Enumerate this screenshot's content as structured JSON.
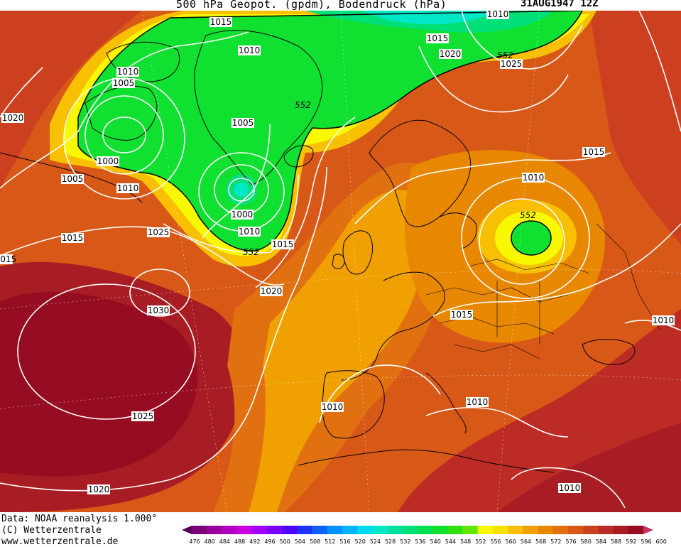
{
  "header": {
    "title": "500 hPa Geopot. (gpdm), Bodendruck (hPa)",
    "date": "31AUG1947 12Z"
  },
  "footer": {
    "source": "Data: NOAA reanalysis 1.000°",
    "copyright": "(C) Wetterzentrale",
    "website": "www.wetterzentrale.de"
  },
  "legend": {
    "values": [
      "476",
      "480",
      "484",
      "488",
      "492",
      "496",
      "500",
      "504",
      "508",
      "512",
      "516",
      "520",
      "524",
      "528",
      "532",
      "536",
      "540",
      "544",
      "548",
      "552",
      "556",
      "560",
      "564",
      "568",
      "572",
      "576",
      "580",
      "584",
      "588",
      "592",
      "596",
      "600"
    ],
    "colors": [
      "#5a005a",
      "#7a007a",
      "#99009f",
      "#b200c0",
      "#cc00e0",
      "#a000ff",
      "#7a00ff",
      "#5000ff",
      "#2030ff",
      "#1060ff",
      "#0090ff",
      "#00b4ff",
      "#00d8f0",
      "#00e8c8",
      "#00e0a0",
      "#00e078",
      "#00e050",
      "#10e030",
      "#30e010",
      "#60e800",
      "#f8f800",
      "#f8e000",
      "#f8c000",
      "#f0a000",
      "#e88800",
      "#e07010",
      "#d85818",
      "#cc4020",
      "#bc2c24",
      "#a81c24",
      "#960c20",
      "#cc3060"
    ]
  },
  "isobar_labels": [
    "1015",
    "1010",
    "1010",
    "1005",
    "1020",
    "1000",
    "1005",
    "1010",
    "1015",
    "1025",
    "1030",
    "1025",
    "1020",
    "1000",
    "1010",
    "1005",
    "1015",
    "1020",
    "1015",
    "1020",
    "1025",
    "1010",
    "1015",
    "1010",
    "1015",
    "1010",
    "1010",
    "1010",
    "1010",
    "1015"
  ],
  "height_labels": [
    "552",
    "552",
    "552",
    "552"
  ],
  "colors": {
    "z_green": "#10e030",
    "z_light_green": "#60e800",
    "z_cyan": "#00e8c8",
    "z_yellow": "#f8f800",
    "z_orange": "#f0a000",
    "z_deep_orange": "#e07010",
    "z_red": "#cc4020",
    "z_dark_red": "#a81c24",
    "coast": "#000000",
    "isobar": "#ffffff"
  }
}
